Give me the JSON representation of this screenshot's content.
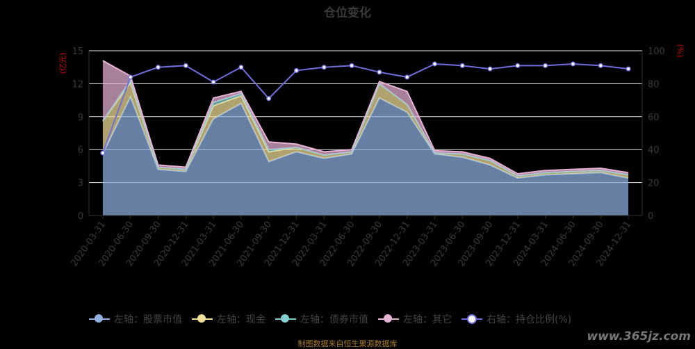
{
  "chart_data": {
    "type": "area",
    "title": "仓位变化",
    "left_axis_unit": "(亿元)",
    "right_axis_unit": "(%)",
    "x": [
      "2020-03-31",
      "2020-06-30",
      "2020-09-30",
      "2020-12-31",
      "2021-03-31",
      "2021-06-30",
      "2021-09-30",
      "2021-12-31",
      "2022-03-31",
      "2022-06-30",
      "2022-09-30",
      "2022-12-31",
      "2023-03-31",
      "2023-06-30",
      "2023-09-30",
      "2023-12-31",
      "2024-03-31",
      "2024-06-30",
      "2024-09-30",
      "2024-12-31"
    ],
    "left_ylim": [
      0,
      15
    ],
    "left_ticks": [
      0,
      3,
      6,
      9,
      12,
      15
    ],
    "right_ylim": [
      0,
      100
    ],
    "right_ticks": [
      0,
      20,
      40,
      60,
      80,
      100
    ],
    "grid": true,
    "legend_position": "bottom",
    "series": [
      {
        "name": "左轴：股票市值",
        "axis": "left",
        "stack": true,
        "color": "#8fb0e0",
        "values": [
          5.6,
          10.8,
          4.2,
          4.0,
          8.8,
          10.2,
          4.9,
          5.8,
          5.2,
          5.6,
          10.7,
          9.4,
          5.6,
          5.3,
          4.6,
          3.4,
          3.7,
          3.8,
          3.9,
          3.4
        ]
      },
      {
        "name": "左轴：现金",
        "axis": "left",
        "stack": true,
        "color": "#f3e09a",
        "values": [
          3.0,
          1.3,
          0.2,
          0.2,
          1.2,
          0.7,
          0.9,
          0.4,
          0.3,
          0.2,
          1.3,
          0.7,
          0.1,
          0.3,
          0.4,
          0.2,
          0.2,
          0.2,
          0.2,
          0.3
        ]
      },
      {
        "name": "左轴：债券市值",
        "axis": "left",
        "stack": true,
        "color": "#84cfcf",
        "values": [
          0.0,
          0.2,
          0.0,
          0.0,
          0.3,
          0.2,
          0.2,
          0.0,
          0.0,
          0.0,
          0.0,
          0.0,
          0.0,
          0.0,
          0.0,
          0.0,
          0.0,
          0.0,
          0.0,
          0.0
        ]
      },
      {
        "name": "左轴：其它",
        "axis": "left",
        "stack": true,
        "color": "#e7b3d6",
        "values": [
          5.5,
          0.4,
          0.2,
          0.2,
          0.4,
          0.2,
          0.7,
          0.3,
          0.3,
          0.2,
          0.2,
          1.2,
          0.2,
          0.2,
          0.2,
          0.2,
          0.2,
          0.2,
          0.2,
          0.2
        ]
      },
      {
        "name": "右轴：持仓比例(%)",
        "axis": "right",
        "stack": false,
        "color": "#6f6fe0",
        "values": [
          38,
          84,
          90,
          91,
          81,
          90,
          71,
          88,
          90,
          91,
          87,
          84,
          92,
          91,
          89,
          91,
          91,
          92,
          91,
          89
        ]
      }
    ]
  },
  "footer": {
    "source_note": "制图数据来自恒生聚源数据库",
    "watermark": "www.365jz.com"
  },
  "colors": {
    "background": "#000000",
    "axis_text": "#3a3a3a",
    "axis_unit": "#cc0000",
    "grid": "#e8e8e8"
  }
}
